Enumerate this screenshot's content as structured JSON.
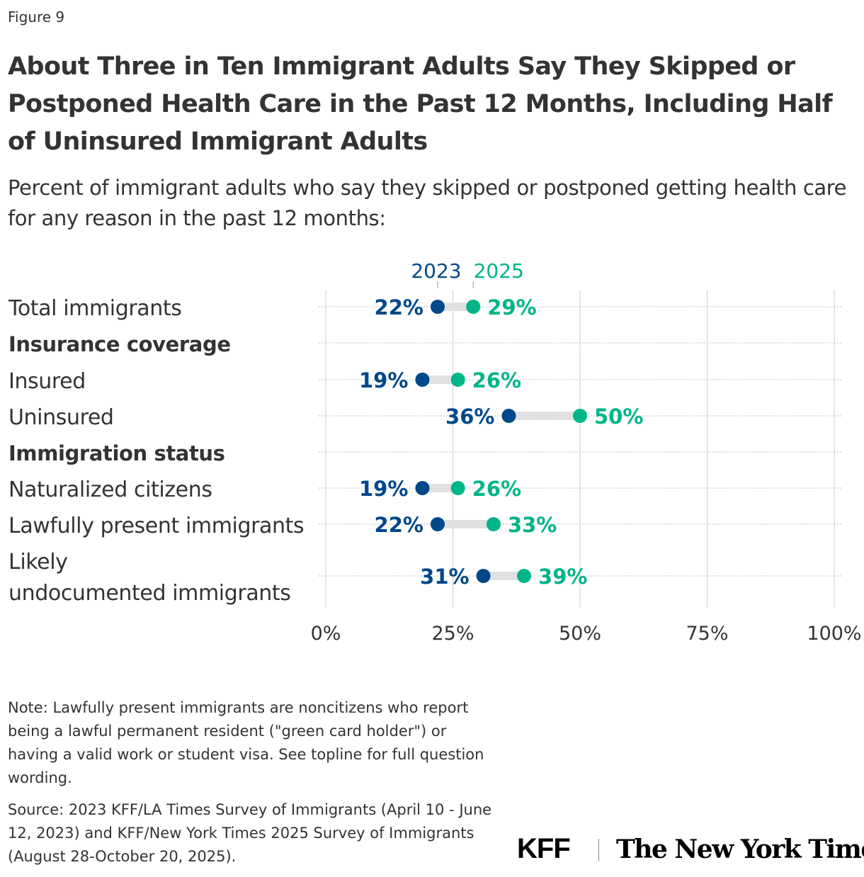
{
  "figure_label": "Figure 9",
  "title": "About Three in Ten Immigrant Adults Say They Skipped or Postponed Health Care in the Past 12 Months, Including Half of Uninsured Immigrant Adults",
  "subtitle": "Percent of immigrant adults who say they skipped or postponed getting health care for any reason in the past 12 months:",
  "note": "Note: Lawfully present immigrants are noncitizens who report being a lawful permanent resident (\"green card holder\") or having a valid work or student visa. See topline for full question wording.",
  "source": "Source: 2023 KFF/LA Times Survey of Immigrants (April 10 - June 12, 2023) and KFF/New York Times 2025 Survey of Immigrants (August 28-October 20, 2025).",
  "logos": {
    "kff": "KFF",
    "nyt": "The New York Times"
  },
  "chart_data": {
    "type": "dumbbell",
    "xlim": [
      0,
      100
    ],
    "x_ticks": [
      "0%",
      "25%",
      "50%",
      "75%",
      "100%"
    ],
    "grid": true,
    "series": [
      {
        "name": "2023",
        "color": "#00488a"
      },
      {
        "name": "2025",
        "color": "#00b588"
      }
    ],
    "rows": [
      {
        "label": "Total immigrants",
        "header": false,
        "values": [
          22,
          29
        ],
        "labels": [
          "22%",
          "29%"
        ]
      },
      {
        "label": "Insurance coverage",
        "header": true
      },
      {
        "label": "Insured",
        "header": false,
        "values": [
          19,
          26
        ],
        "labels": [
          "19%",
          "26%"
        ]
      },
      {
        "label": "Uninsured",
        "header": false,
        "values": [
          36,
          50
        ],
        "labels": [
          "36%",
          "50%"
        ]
      },
      {
        "label": "Immigration status",
        "header": true
      },
      {
        "label": "Naturalized citizens",
        "header": false,
        "values": [
          19,
          26
        ],
        "labels": [
          "19%",
          "26%"
        ]
      },
      {
        "label": "Lawfully present immigrants",
        "header": false,
        "values": [
          22,
          33
        ],
        "labels": [
          "22%",
          "33%"
        ]
      },
      {
        "label": "Likely\nundocumented immigrants",
        "header": false,
        "values": [
          31,
          39
        ],
        "labels": [
          "31%",
          "39%"
        ]
      }
    ]
  }
}
